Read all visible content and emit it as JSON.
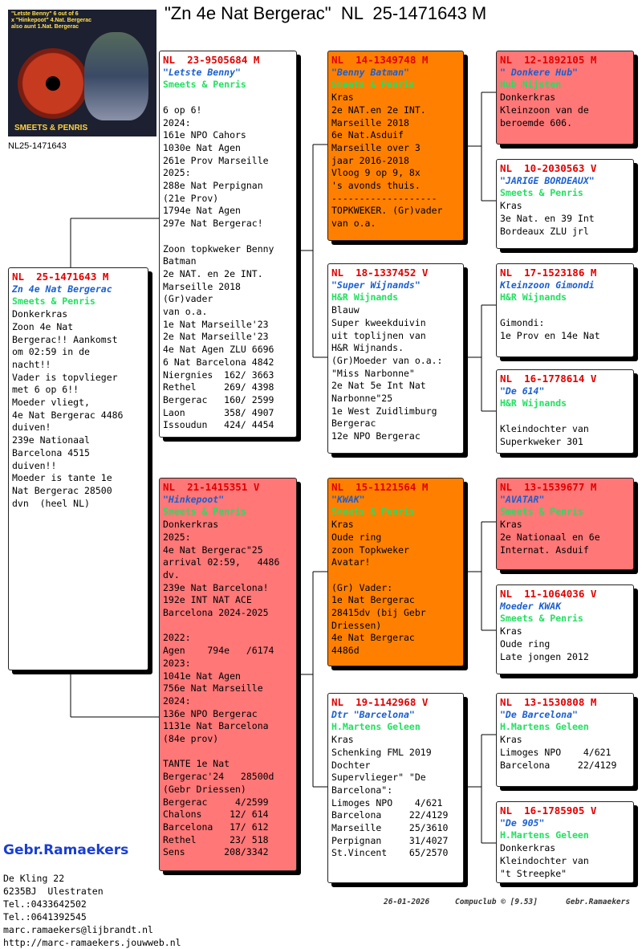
{
  "title": "\"Zn 4e Nat Bergerac\"  NL  25-1471643 M",
  "photo": {
    "caption_lines": [
      "\"Letste Benny\" 6 out of 6",
      "x \"Hinkepoot\" 4.Nat. Bergerac",
      "also aunt 1.Nat. Bergerac"
    ],
    "brand": "SMEETS & PENRIS",
    "label": "NL25-1471643"
  },
  "pigeons": [
    {
      "ring": "NL  25-1471643 M",
      "name": "Zn 4e Nat Bergerac",
      "owner": "Smeets & Penris",
      "blocks": [
        [
          "Donkerkras",
          "Zoon 4e Nat",
          "Bergerac!! Aankomst",
          "om 02:59 in de",
          "nacht!!",
          "Vader is topvlieger",
          "met 6 op 6!!",
          "Moeder vliegt,",
          "4e Nat Bergerac 4486",
          "duiven!",
          "239e Nationaal",
          "Barcelona 4515",
          "duiven!!",
          "Moeder is tante 1e",
          "Nat Bergerac 28500",
          "dvn  (heel NL)"
        ]
      ]
    },
    {
      "ring": "NL  23-9505684 M",
      "name": "\"Letste Benny\"",
      "owner": "Smeets & Penris",
      "blocks": [
        [
          "6 op 6!",
          "2024:",
          "161e NPO Cahors",
          "1030e Nat Agen",
          "261e Prov Marseille",
          "2025:",
          "288e Nat Perpignan",
          "(21e Prov)",
          "1794e Nat Agen",
          "297e Nat Bergerac!"
        ],
        [
          "Zoon topkweker Benny",
          "Batman",
          "2e NAT. en 2e INT.",
          "Marseille 2018",
          "(Gr)vader",
          "van o.a.",
          "1e Nat Marseille'23",
          "2e Nat Marseille'23",
          "4e Nat Agen ZLU 6696",
          "6 Nat Barcelona 4842",
          "Niergnies  162/ 3663",
          "Rethel     269/ 4398",
          "Bergerac   160/ 2599",
          "Laon       358/ 4907",
          "Issoudun   424/ 4454"
        ]
      ]
    },
    {
      "ring": "NL  21-1415351 V",
      "name": "\"Hinkepoot\"",
      "owner": "Smeets & Penris",
      "blocks": [
        [
          "Donkerkras",
          "2025:",
          "4e Nat Bergerac\"25",
          "arrival 02:59,   4486",
          "dv.",
          "239e Nat Barcelona!",
          "192e INT NAT ACE",
          "Barcelona 2024-2025"
        ],
        [
          "2022:",
          "Agen    794e   /6174",
          "2023:",
          "1041e Nat Agen",
          "756e Nat Marseille",
          "2024:",
          "136e NPO Bergerac",
          "1131e Nat Barcelona",
          "(84e prov)"
        ],
        [
          "TANTE 1e Nat",
          "Bergerac'24   28500d",
          "(Gebr Driessen)",
          "Bergerac     4/2599",
          "Chalons     12/ 614",
          "Barcelona   17/ 612",
          "Rethel      23/ 518",
          "Sens       208/3342"
        ]
      ]
    },
    {
      "ring": "NL  14-1349748 M",
      "name": "\"Benny Batman\"",
      "owner": "Smeets & Penris",
      "blocks": [
        [
          "Kras",
          "2e NAT.en 2e INT.",
          "Marseille 2018",
          "6e Nat.Asduif",
          "Marseille over 3",
          "jaar 2016-2018",
          "Vloog 9 op 9, 8x",
          "'s avonds thuis.",
          "-------------------",
          "TOPKWEKER. (Gr)vader",
          "van o.a."
        ]
      ]
    },
    {
      "ring": "NL  18-1337452 V",
      "name": "\"Super Wijnands\"",
      "owner": "H&R Wijnands",
      "blocks": [
        [
          "Blauw",
          "Super kweekduivin",
          "uit toplijnen van",
          "H&R Wijnands.",
          "(Gr)Moeder van o.a.:",
          "\"Miss Narbonne\"",
          "2e Nat 5e Int Nat",
          "Narbonne\"25",
          "1e West Zuidlimburg",
          "Bergerac",
          "12e NPO Bergerac"
        ]
      ]
    },
    {
      "ring": "NL  15-1121564 M",
      "name": "\"KWAK\"",
      "owner": "Smeets & Penris",
      "blocks": [
        [
          "Kras",
          "Oude ring",
          "zoon Topkweker",
          "Avatar!"
        ],
        [
          "(Gr) Vader:",
          "1e Nat Bergerac",
          "28415dv (bij Gebr",
          "Driessen)",
          "4e Nat Bergerac",
          "4486d"
        ]
      ]
    },
    {
      "ring": "NL  19-1142968 V",
      "name": "Dtr \"Barcelona\"",
      "owner": "H.Martens Geleen",
      "blocks": [
        [
          "Kras",
          "Schenking FML 2019",
          "Dochter",
          "Supervlieger\" \"De",
          "Barcelona\":",
          "Limoges NPO    4/621",
          "Barcelona     22/4129",
          "Marseille     25/3610",
          "Perpignan     31/4027",
          "St.Vincent    65/2570"
        ]
      ]
    },
    {
      "ring": "NL  12-1892105 M",
      "name": "\" Donkere Hub\"",
      "owner": "Hub Nijsten",
      "blocks": [
        [
          "Donkerkras",
          "Kleinzoon van de",
          "beroemde 606."
        ]
      ]
    },
    {
      "ring": "NL  10-2030563 V",
      "name": "\"JARIGE BORDEAUX\"",
      "owner": "Smeets & Penris",
      "blocks": [
        [
          "Kras",
          "3e Nat. en 39 Int",
          "Bordeaux ZLU jrl"
        ]
      ]
    },
    {
      "ring": "NL  17-1523186 M",
      "name": "Kleinzoon Gimondi",
      "owner": "H&R Wijnands",
      "blocks": [
        [
          "Gimondi:",
          "1e Prov en 14e Nat"
        ]
      ]
    },
    {
      "ring": "NL  16-1778614 V",
      "name": "\"De 614\"",
      "owner": "H&R Wijnands",
      "blocks": [
        [
          "Kleindochter van",
          "Superkweker 301"
        ]
      ]
    },
    {
      "ring": "NL  13-1539677 M",
      "name": "\"AVATAR\"",
      "owner": "Smeets & Penris",
      "blocks": [
        [
          "Kras",
          "2e Nationaal en 6e",
          "Internat. Asduif"
        ]
      ]
    },
    {
      "ring": "NL  11-1064036 V",
      "name": "Moeder KWAK",
      "owner": "Smeets & Penris",
      "blocks": [
        [
          "Kras",
          "Oude ring",
          "Late jongen 2012"
        ]
      ]
    },
    {
      "ring": "NL  13-1530808 M",
      "name": "\"De Barcelona\"",
      "owner": "H.Martens Geleen",
      "blocks": [
        [
          "Kras",
          "Limoges NPO    4/621",
          "Barcelona     22/4129"
        ]
      ]
    },
    {
      "ring": "NL  16-1785905 V",
      "name": "\"De 905\"",
      "owner": "H.Martens Geleen",
      "blocks": [
        [
          "Donkerkras",
          "Kleindochter van",
          "\"t Streepke\""
        ]
      ]
    }
  ],
  "breeder": {
    "name": "Gebr.Ramaekers",
    "lines": [
      "De Kling 22",
      "6235BJ  Ulestraten",
      "Tel.:0433642502",
      "Tel.:0641392545",
      "marc.ramaekers@lijbrandt.nl",
      "http://marc-ramaekers.jouwweb.nl"
    ]
  },
  "footer": {
    "date": "26-01-2026",
    "software": "Compuclub © [9.53]",
    "owner": "Gebr.Ramaekers"
  }
}
